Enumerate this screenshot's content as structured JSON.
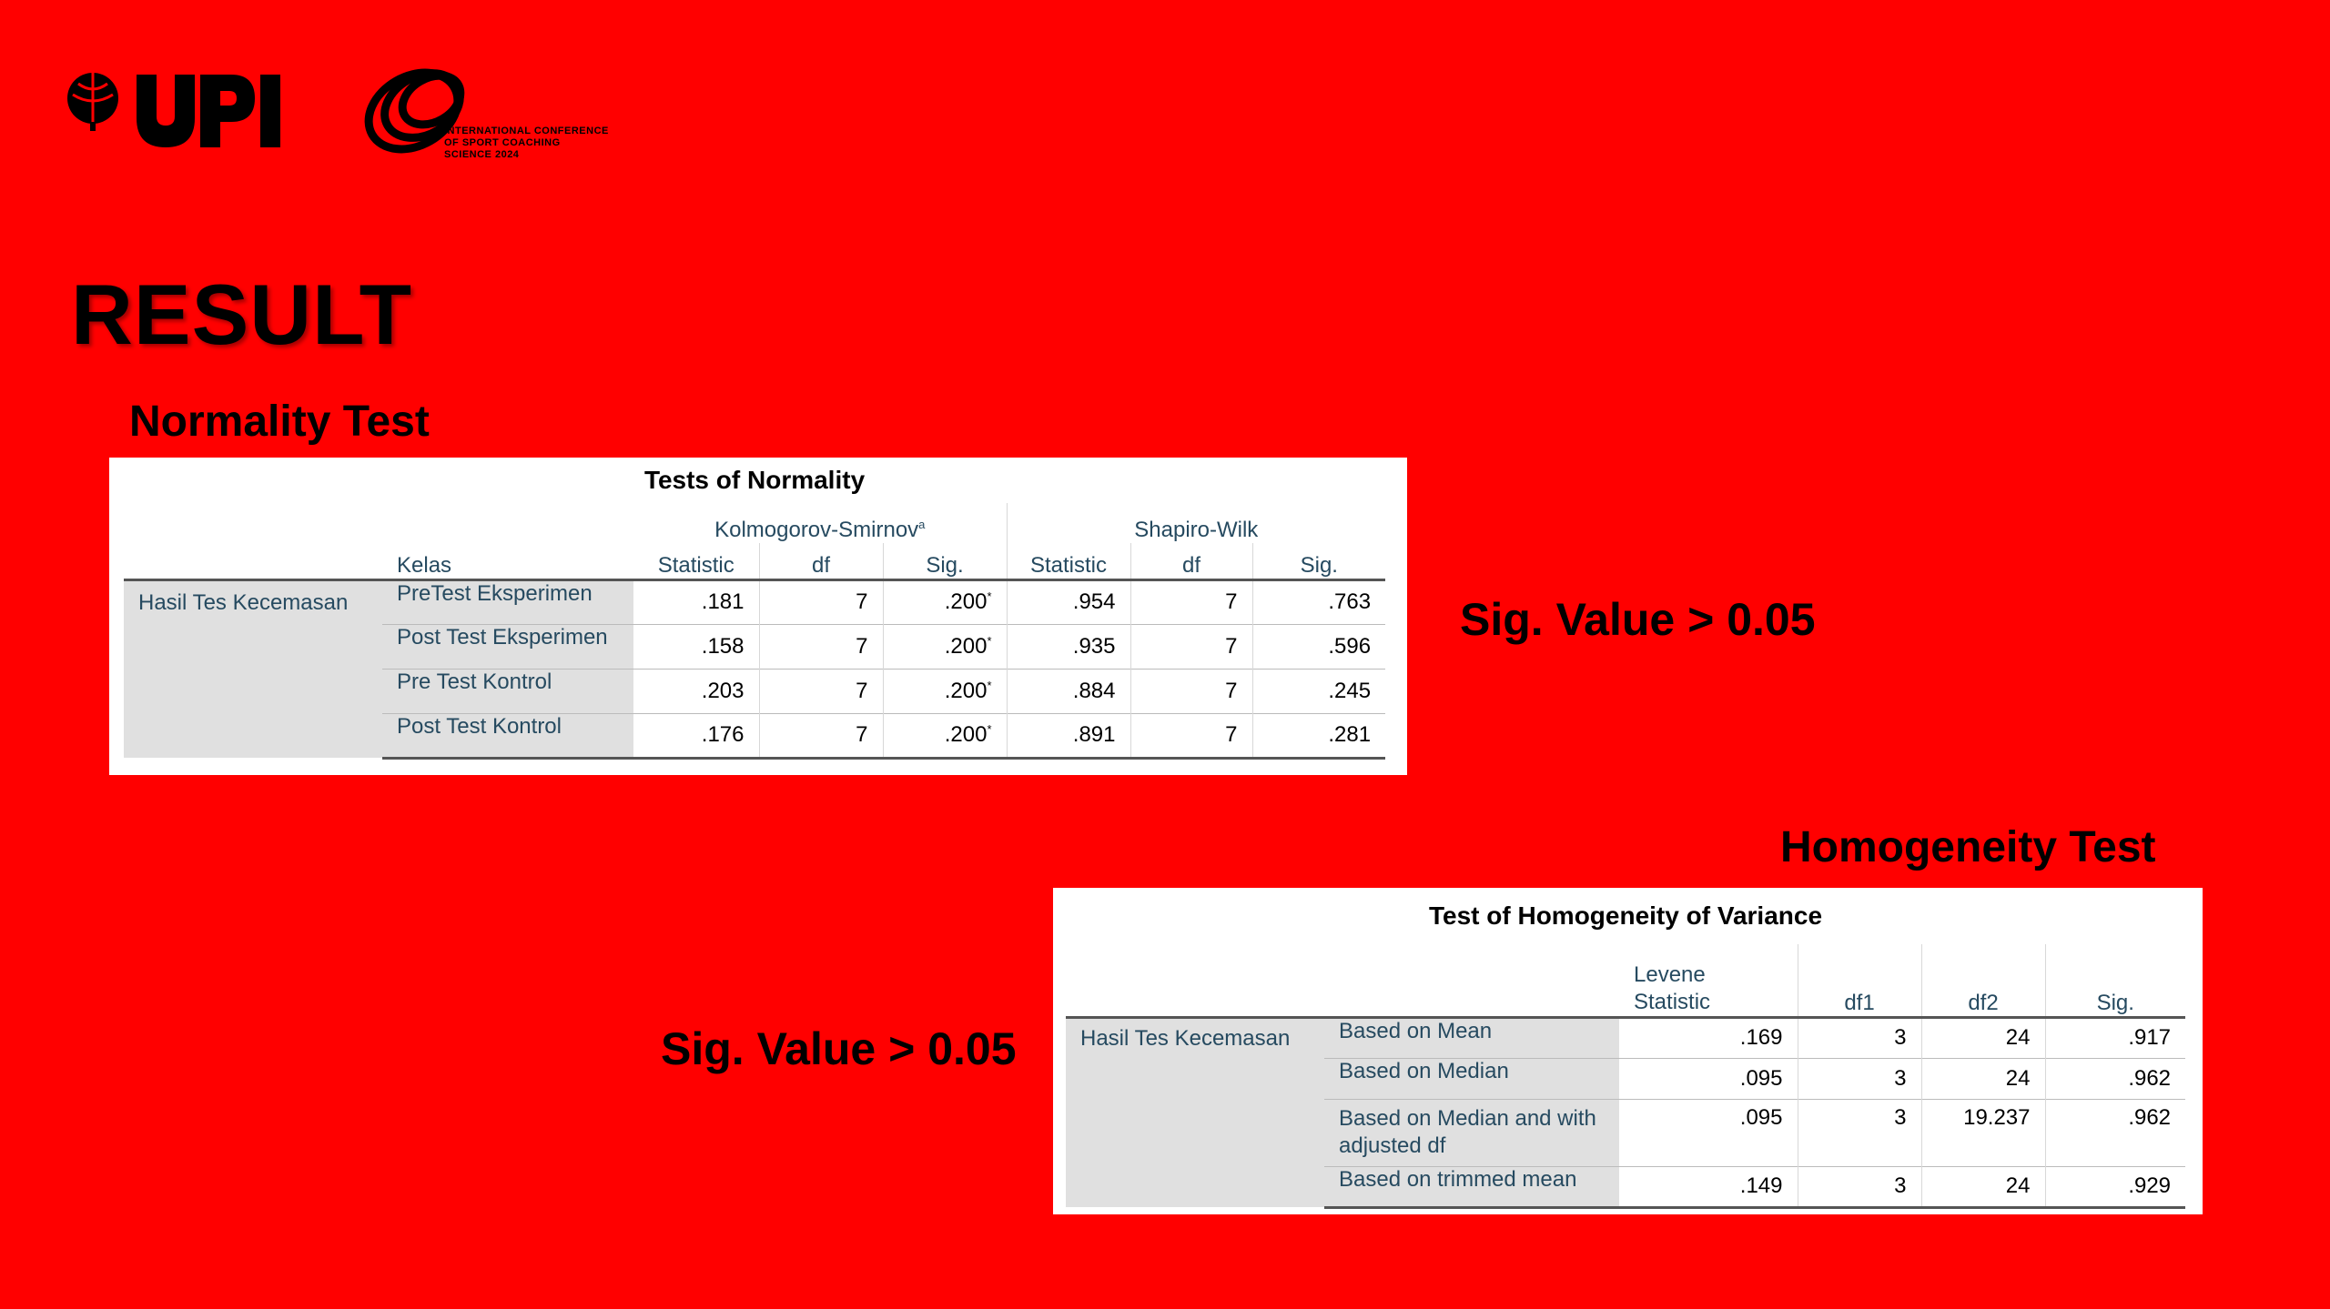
{
  "slide": {
    "title": "RESULT",
    "logo_text": [
      "INTERNATIONAL CONFERENCE",
      "OF SPORT COACHING",
      "SCIENCE 2024"
    ]
  },
  "normality": {
    "heading": "Normality Test",
    "caption": "Tests of Normality",
    "group_ks": "Kolmogorov-Smirnov",
    "group_ks_sup": "a",
    "group_sw": "Shapiro-Wilk",
    "col_kelas": "Kelas",
    "columns": [
      "Statistic",
      "df",
      "Sig.",
      "Statistic",
      "df",
      "Sig."
    ],
    "row_label": "Hasil Tes Kecemasan",
    "rows": [
      {
        "kelas": "PreTest Eksperimen",
        "ks_stat": ".181",
        "ks_df": "7",
        "ks_sig": ".200",
        "ks_sig_mark": "*",
        "sw_stat": ".954",
        "sw_df": "7",
        "sw_sig": ".763"
      },
      {
        "kelas": "Post Test Eksperimen",
        "ks_stat": ".158",
        "ks_df": "7",
        "ks_sig": ".200",
        "ks_sig_mark": "*",
        "sw_stat": ".935",
        "sw_df": "7",
        "sw_sig": ".596"
      },
      {
        "kelas": "Pre Test Kontrol",
        "ks_stat": ".203",
        "ks_df": "7",
        "ks_sig": ".200",
        "ks_sig_mark": "*",
        "sw_stat": ".884",
        "sw_df": "7",
        "sw_sig": ".245"
      },
      {
        "kelas": "Post Test Kontrol",
        "ks_stat": ".176",
        "ks_df": "7",
        "ks_sig": ".200",
        "ks_sig_mark": "*",
        "sw_stat": ".891",
        "sw_df": "7",
        "sw_sig": ".281"
      }
    ],
    "note": "Sig. Value > 0.05"
  },
  "homogeneity": {
    "heading": "Homogeneity Test",
    "caption": "Test of Homogeneity of Variance",
    "columns": [
      "Levene Statistic",
      "df1",
      "df2",
      "Sig."
    ],
    "row_label": "Hasil Tes Kecemasan",
    "rows": [
      {
        "basis": "Based on Mean",
        "levene": ".169",
        "df1": "3",
        "df2": "24",
        "sig": ".917"
      },
      {
        "basis": "Based on Median",
        "levene": ".095",
        "df1": "3",
        "df2": "24",
        "sig": ".962"
      },
      {
        "basis": "Based on Median and with adjusted df",
        "levene": ".095",
        "df1": "3",
        "df2": "19.237",
        "sig": ".962"
      },
      {
        "basis": "Based on trimmed mean",
        "levene": ".149",
        "df1": "3",
        "df2": "24",
        "sig": ".929"
      }
    ],
    "note": "Sig. Value > 0.05"
  },
  "colors": {
    "background": "#ff0000",
    "spss_header_text": "#264a60",
    "spss_label_bg": "#e0e0e0"
  }
}
